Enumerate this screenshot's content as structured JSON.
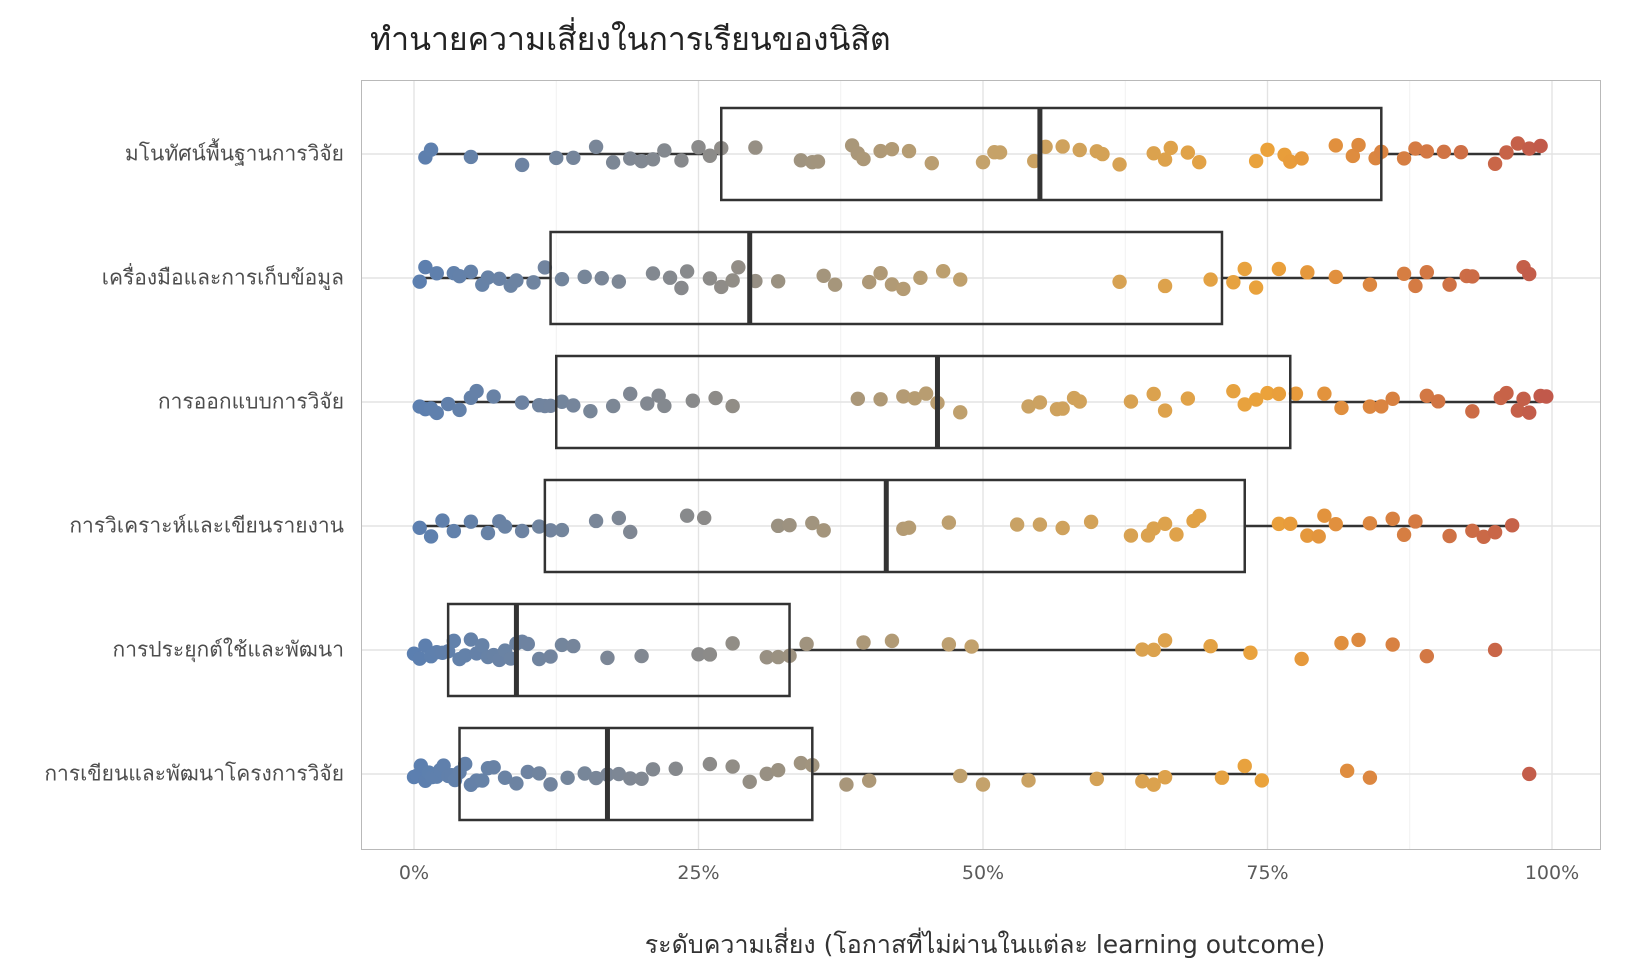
{
  "chart_data": {
    "type": "boxplot-jitter",
    "title": "ทำนายความเสี่ยงในการเรียนของนิสิต",
    "xlabel": "ระดับความเสี่ยง (โอกาสที่ไม่ผ่านในแต่ละ learning outcome)",
    "ylabel": "",
    "xlim": [
      0,
      100
    ],
    "x_ticks": [
      "0%",
      "25%",
      "50%",
      "75%",
      "100%"
    ],
    "x_tick_values": [
      0,
      25,
      50,
      75,
      100
    ],
    "grid": true,
    "color_scale": [
      "#5b7fb0",
      "#8a8a8a",
      "#c4a26b",
      "#eba23a",
      "#c0574b"
    ],
    "categories": [
      {
        "name": "มโนทัศน์พื้นฐานการวิจัย",
        "box": {
          "whisker_low": 1,
          "q1": 27,
          "median": 55,
          "q3": 85,
          "whisker_high": 99
        },
        "points": [
          1,
          1.5,
          5,
          9.5,
          12.5,
          14,
          16,
          17.5,
          19,
          20,
          21,
          22,
          23.5,
          25,
          26,
          27,
          30,
          34,
          35,
          35.5,
          38.5,
          39,
          39.5,
          41,
          42,
          43.5,
          45.5,
          50,
          51,
          51.5,
          54.5,
          55.5,
          57,
          58.5,
          60,
          60.5,
          62,
          65,
          66,
          66.5,
          68,
          69,
          74,
          75,
          76.5,
          77,
          78,
          81,
          82.5,
          83,
          84.5,
          85,
          87,
          88,
          89,
          90.5,
          92,
          95,
          96,
          97,
          98,
          99
        ]
      },
      {
        "name": "เครื่องมือและการเก็บข้อมูล",
        "box": {
          "whisker_low": 0.5,
          "q1": 12,
          "median": 29.5,
          "q3": 71,
          "whisker_high": 97.5
        },
        "points": [
          0.5,
          1,
          2,
          3.5,
          4,
          5,
          6,
          6.5,
          7.5,
          8.5,
          9,
          10.5,
          11.5,
          13,
          15,
          16.5,
          18,
          21,
          22.5,
          23.5,
          24,
          26,
          27,
          28,
          28.5,
          30,
          32,
          36,
          37,
          40,
          41,
          42,
          43,
          44.5,
          46.5,
          48,
          62,
          66,
          70,
          72,
          73,
          74,
          76,
          78.5,
          81,
          84,
          87,
          88,
          89,
          91,
          92.5,
          93,
          97.5,
          98
        ]
      },
      {
        "name": "การออกแบบการวิจัย",
        "box": {
          "whisker_low": 0.5,
          "q1": 12.5,
          "median": 46,
          "q3": 77,
          "whisker_high": 99
        },
        "points": [
          0.5,
          1,
          1.5,
          2,
          3,
          4,
          5,
          5.5,
          7,
          9.5,
          11,
          11.5,
          12,
          13,
          14,
          15.5,
          17.5,
          19,
          20.5,
          21.5,
          22,
          24.5,
          26.5,
          28,
          39,
          41,
          43,
          44,
          45,
          46,
          48,
          54,
          55,
          56.5,
          57,
          58,
          58.5,
          63,
          65,
          66,
          68,
          72,
          73,
          74,
          75,
          76,
          77.5,
          80,
          81.5,
          84,
          85,
          86,
          89,
          90,
          93,
          95.5,
          96,
          97,
          97.5,
          98,
          99,
          99.5
        ]
      },
      {
        "name": "การวิเคราะห์และเขียนรายงาน",
        "box": {
          "whisker_low": 0.5,
          "q1": 11.5,
          "median": 41.5,
          "q3": 73,
          "whisker_high": 96.5
        },
        "points": [
          0.5,
          1.5,
          2.5,
          3.5,
          5,
          6.5,
          7.5,
          8,
          9.5,
          11,
          12,
          13,
          16,
          18,
          19,
          24,
          25.5,
          32,
          33,
          35,
          36,
          43,
          43.5,
          47,
          53,
          55,
          57,
          59.5,
          63,
          64.5,
          65,
          66,
          67,
          68.5,
          69,
          76,
          77,
          78.5,
          79.5,
          80,
          81,
          84,
          86,
          87,
          88,
          91,
          93,
          94,
          95,
          96.5
        ]
      },
      {
        "name": "การประยุกต์ใช้และพัฒนา",
        "box": {
          "whisker_low": 0,
          "q1": 3,
          "median": 9,
          "q3": 33,
          "whisker_high": 74
        },
        "points": [
          0,
          0.5,
          1,
          1.5,
          2,
          2.5,
          3,
          3.5,
          4,
          4.5,
          5,
          5.5,
          6,
          6.5,
          7,
          7.5,
          8,
          8.5,
          9,
          9.5,
          10,
          11,
          12,
          13,
          14,
          17,
          20,
          25,
          26,
          28,
          31,
          32,
          33,
          34.5,
          39.5,
          42,
          47,
          49,
          64,
          65,
          66,
          70,
          73.5,
          78,
          81.5,
          83,
          86,
          89,
          95
        ]
      },
      {
        "name": "การเขียนและพัฒนาโครงการวิจัย",
        "box": {
          "whisker_low": 0,
          "q1": 4,
          "median": 17,
          "q3": 35,
          "whisker_high": 74
        },
        "points": [
          0,
          0.3,
          0.6,
          1,
          1.3,
          1.6,
          2,
          2.3,
          2.6,
          3,
          3.3,
          3.6,
          4,
          4.5,
          5,
          5.5,
          6,
          6.5,
          7,
          8,
          9,
          10,
          11,
          12,
          13.5,
          15,
          16,
          17,
          18,
          19,
          20,
          21,
          23,
          26,
          28,
          29.5,
          31,
          32,
          34,
          35,
          38,
          40,
          48,
          50,
          54,
          60,
          64,
          65,
          66,
          71,
          73,
          74.5,
          82,
          84,
          98
        ]
      }
    ]
  }
}
